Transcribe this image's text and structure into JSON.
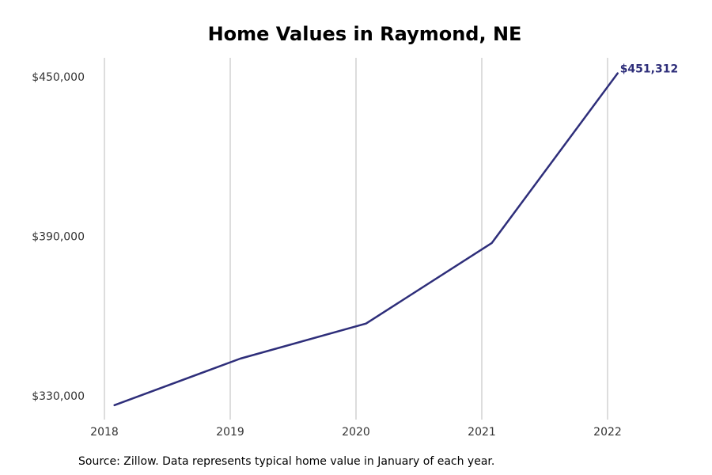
{
  "chart_data": {
    "type": "line",
    "title": "Home Values in Raymond, NE",
    "xlabel": "",
    "ylabel": "",
    "x": [
      "2018-01",
      "2019-01",
      "2020-01",
      "2021-01",
      "2022-01"
    ],
    "x_tick_labels": [
      "2018",
      "2019",
      "2020",
      "2021",
      "2022"
    ],
    "y_ticks": [
      330000,
      390000,
      450000
    ],
    "y_tick_labels": [
      "$330,000",
      "$390,000",
      "$450,000"
    ],
    "ylim": [
      323000,
      458000
    ],
    "series": [
      {
        "values": [
          326500,
          344000,
          357200,
          387500,
          451312
        ],
        "color": "#2e2e7a"
      }
    ],
    "end_label": "$451,312",
    "grid": "vertical",
    "legend": "none",
    "source_note": "Source: Zillow. Data represents typical home value in January of each year.",
    "colors": {
      "line": "#2e2e7a",
      "grid": "#bbbbbb"
    }
  }
}
